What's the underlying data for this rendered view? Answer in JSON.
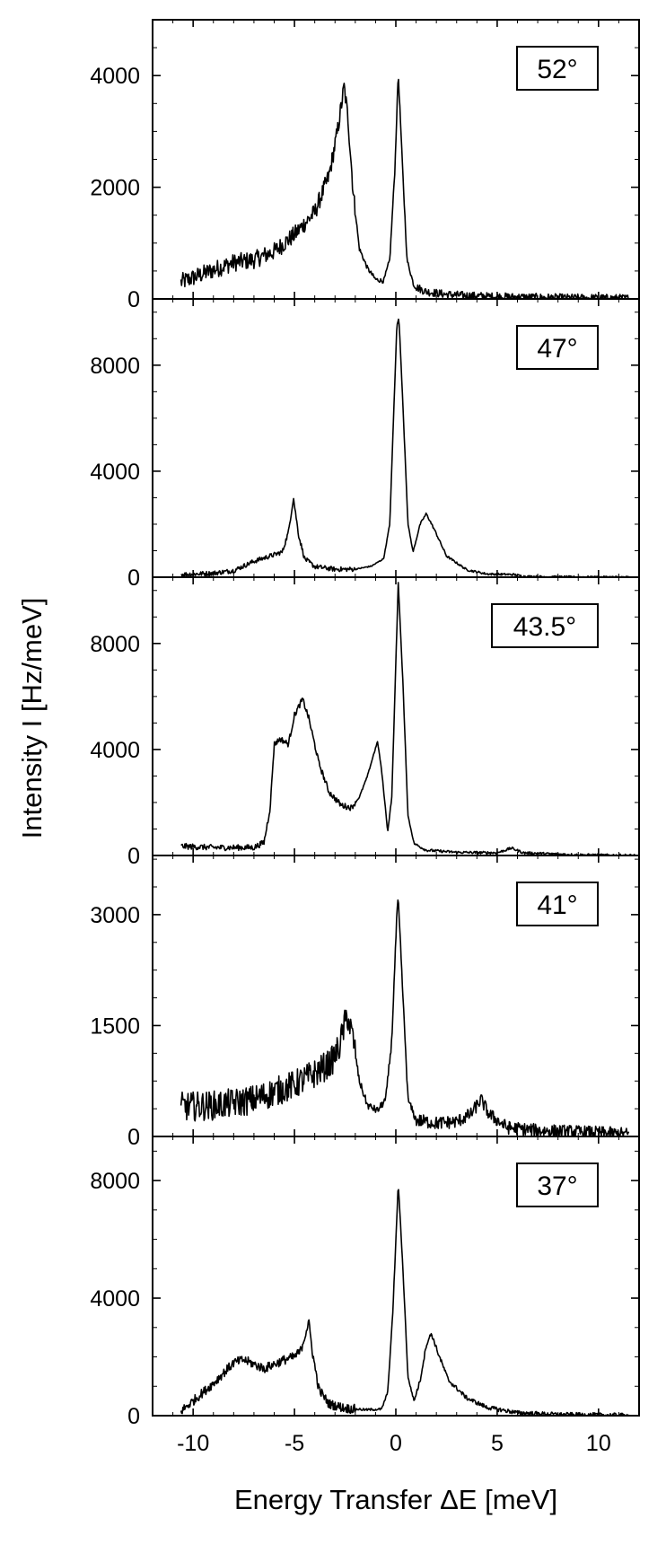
{
  "chart_data": {
    "type": "line",
    "xlabel": "Energy Transfer ΔE [meV]",
    "ylabel": "Intensity I [Hz/meV]",
    "xlim": [
      -12,
      12
    ],
    "x_ticks": [
      -10,
      -5,
      0,
      5,
      10
    ],
    "x_tick_labels": [
      "-10",
      "-5",
      "0",
      "5",
      "10"
    ],
    "grid": false,
    "panels": [
      {
        "label": "52°",
        "ylim": [
          0,
          5000
        ],
        "y_ticks": [
          0,
          2000,
          4000
        ],
        "y_tick_labels": [
          "0",
          "2000",
          "4000"
        ],
        "noise": 160,
        "points": [
          [
            -10.6,
            300
          ],
          [
            -10,
            380
          ],
          [
            -9,
            520
          ],
          [
            -8,
            650
          ],
          [
            -7,
            700
          ],
          [
            -6,
            850
          ],
          [
            -5,
            1150
          ],
          [
            -4,
            1550
          ],
          [
            -3.3,
            2200
          ],
          [
            -2.9,
            2950
          ],
          [
            -2.55,
            3800
          ],
          [
            -2.35,
            3200
          ],
          [
            -2.1,
            1900
          ],
          [
            -1.8,
            900
          ],
          [
            -1.4,
            550
          ],
          [
            -1,
            350
          ],
          [
            -0.6,
            320
          ],
          [
            -0.3,
            700
          ],
          [
            -0.05,
            2300
          ],
          [
            0.12,
            4050
          ],
          [
            0.3,
            2600
          ],
          [
            0.55,
            700
          ],
          [
            0.9,
            230
          ],
          [
            1.5,
            130
          ],
          [
            2.5,
            80
          ],
          [
            3.5,
            60
          ],
          [
            5,
            40
          ],
          [
            8,
            20
          ],
          [
            11.5,
            10
          ]
        ]
      },
      {
        "label": "47°",
        "ylim": [
          0,
          10500
        ],
        "y_ticks": [
          0,
          4000,
          8000
        ],
        "y_tick_labels": [
          "0",
          "4000",
          "8000"
        ],
        "noise": 90,
        "points": [
          [
            -10.6,
            100
          ],
          [
            -9,
            150
          ],
          [
            -8,
            250
          ],
          [
            -7,
            600
          ],
          [
            -6,
            850
          ],
          [
            -5.6,
            950
          ],
          [
            -5.3,
            1700
          ],
          [
            -5.05,
            3000
          ],
          [
            -4.8,
            1600
          ],
          [
            -4.5,
            700
          ],
          [
            -4,
            400
          ],
          [
            -3,
            300
          ],
          [
            -2,
            300
          ],
          [
            -1.2,
            420
          ],
          [
            -0.6,
            700
          ],
          [
            -0.3,
            2000
          ],
          [
            0.05,
            9500
          ],
          [
            0.15,
            9800
          ],
          [
            0.35,
            6500
          ],
          [
            0.6,
            2000
          ],
          [
            0.85,
            950
          ],
          [
            1.2,
            2000
          ],
          [
            1.5,
            2400
          ],
          [
            1.9,
            1800
          ],
          [
            2.5,
            800
          ],
          [
            3.5,
            280
          ],
          [
            4.5,
            120
          ],
          [
            5.8,
            100
          ],
          [
            6.3,
            30
          ],
          [
            8,
            10
          ],
          [
            11.5,
            0
          ]
        ]
      },
      {
        "label": "43.5°",
        "ylim": [
          0,
          10500
        ],
        "y_ticks": [
          0,
          4000,
          8000
        ],
        "y_tick_labels": [
          "0",
          "4000",
          "8000"
        ],
        "noise": 110,
        "points": [
          [
            -10.6,
            350
          ],
          [
            -9,
            300
          ],
          [
            -8,
            300
          ],
          [
            -7,
            300
          ],
          [
            -6.5,
            500
          ],
          [
            -6.2,
            1800
          ],
          [
            -6,
            4200
          ],
          [
            -5.7,
            4400
          ],
          [
            -5.3,
            4200
          ],
          [
            -5,
            5300
          ],
          [
            -4.6,
            5900
          ],
          [
            -4.3,
            5200
          ],
          [
            -3.8,
            3500
          ],
          [
            -3.3,
            2400
          ],
          [
            -2.7,
            1900
          ],
          [
            -2.2,
            1800
          ],
          [
            -1.8,
            2200
          ],
          [
            -1.4,
            3000
          ],
          [
            -1.1,
            3800
          ],
          [
            -0.9,
            4300
          ],
          [
            -0.7,
            3200
          ],
          [
            -0.4,
            900
          ],
          [
            -0.2,
            2200
          ],
          [
            0.12,
            10300
          ],
          [
            0.35,
            6500
          ],
          [
            0.6,
            1500
          ],
          [
            0.9,
            450
          ],
          [
            1.5,
            200
          ],
          [
            3,
            120
          ],
          [
            5,
            100
          ],
          [
            5.7,
            280
          ],
          [
            6.3,
            100
          ],
          [
            9,
            20
          ],
          [
            11.8,
            0
          ]
        ]
      },
      {
        "label": "41°",
        "ylim": [
          0,
          3800
        ],
        "y_ticks": [
          0,
          1500,
          3000
        ],
        "y_tick_labels": [
          "0",
          "1500",
          "3000"
        ],
        "noise": 200,
        "points": [
          [
            -10.6,
            400
          ],
          [
            -9,
            420
          ],
          [
            -8,
            450
          ],
          [
            -7,
            500
          ],
          [
            -6,
            600
          ],
          [
            -5,
            700
          ],
          [
            -4,
            850
          ],
          [
            -3.2,
            1000
          ],
          [
            -2.8,
            1200
          ],
          [
            -2.4,
            1650
          ],
          [
            -2.1,
            1300
          ],
          [
            -1.8,
            750
          ],
          [
            -1.4,
            420
          ],
          [
            -0.9,
            350
          ],
          [
            -0.5,
            500
          ],
          [
            -0.2,
            1300
          ],
          [
            0.05,
            3000
          ],
          [
            0.12,
            3200
          ],
          [
            0.35,
            1900
          ],
          [
            0.6,
            500
          ],
          [
            1,
            220
          ],
          [
            2,
            180
          ],
          [
            3,
            200
          ],
          [
            3.7,
            300
          ],
          [
            4.2,
            500
          ],
          [
            4.6,
            300
          ],
          [
            5.5,
            120
          ],
          [
            7,
            80
          ],
          [
            9,
            60
          ],
          [
            11.5,
            30
          ]
        ]
      },
      {
        "label": "37°",
        "ylim": [
          0,
          9500
        ],
        "y_ticks": [
          0,
          4000,
          8000
        ],
        "y_tick_labels": [
          "0",
          "4000",
          "8000"
        ],
        "noise": 160,
        "points": [
          [
            -10.6,
            150
          ],
          [
            -10,
            500
          ],
          [
            -9,
            1100
          ],
          [
            -8,
            1800
          ],
          [
            -7.5,
            1900
          ],
          [
            -6.5,
            1600
          ],
          [
            -5.5,
            1900
          ],
          [
            -5,
            2000
          ],
          [
            -4.7,
            2200
          ],
          [
            -4.45,
            2800
          ],
          [
            -4.3,
            3200
          ],
          [
            -4.1,
            2100
          ],
          [
            -3.8,
            900
          ],
          [
            -3.3,
            400
          ],
          [
            -2.5,
            250
          ],
          [
            -1.5,
            200
          ],
          [
            -0.7,
            220
          ],
          [
            -0.4,
            800
          ],
          [
            -0.15,
            3500
          ],
          [
            0.12,
            7900
          ],
          [
            0.35,
            5000
          ],
          [
            0.6,
            1300
          ],
          [
            0.9,
            500
          ],
          [
            1.2,
            1200
          ],
          [
            1.5,
            2400
          ],
          [
            1.75,
            2800
          ],
          [
            2.1,
            2100
          ],
          [
            2.6,
            1200
          ],
          [
            3.5,
            600
          ],
          [
            4.5,
            280
          ],
          [
            6,
            100
          ],
          [
            8,
            40
          ],
          [
            11.5,
            10
          ]
        ]
      }
    ]
  }
}
